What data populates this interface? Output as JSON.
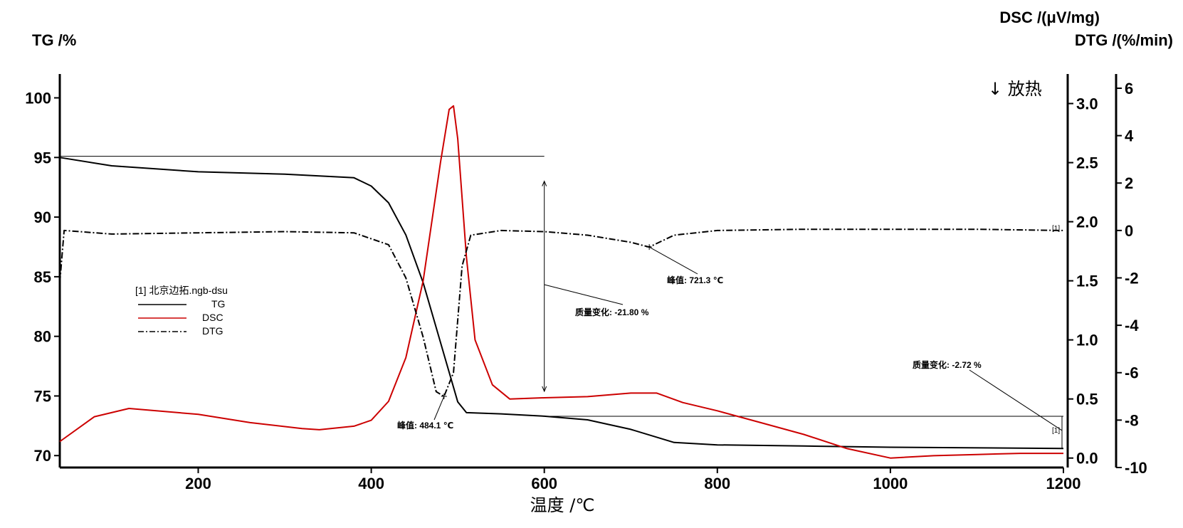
{
  "chart_data": {
    "type": "line",
    "xlabel": "温度 /℃",
    "xlim": [
      40,
      1200
    ],
    "xticks": [
      200,
      400,
      600,
      800,
      1000,
      1200
    ],
    "exo_label": "↓ 放热",
    "axes": {
      "tg": {
        "label": "TG /%",
        "lim": [
          69,
          102
        ],
        "ticks": [
          70,
          75,
          80,
          85,
          90,
          95,
          100
        ]
      },
      "dsc": {
        "label": "DSC /(μV/mg)",
        "lim": [
          -0.08,
          3.25
        ],
        "ticks": [
          0.0,
          0.5,
          1.0,
          1.5,
          2.0,
          2.5,
          3.0
        ],
        "tick_labels": [
          "0.0",
          "0.5",
          "1.0",
          "1.5",
          "2.0",
          "2.5",
          "3.0"
        ]
      },
      "dtg": {
        "label": "DTG /(%/min)",
        "lim": [
          -10,
          6.6
        ],
        "ticks": [
          -10,
          -8,
          -6,
          -4,
          -2,
          0,
          2,
          4,
          6
        ]
      }
    },
    "legend": {
      "title": "[1] 北京边拓.ngb-dsu",
      "entries": [
        "TG",
        "DSC",
        "DTG"
      ]
    },
    "series": [
      {
        "name": "TG",
        "axis": "tg",
        "color": "#000000",
        "dash": "solid",
        "points": [
          [
            40,
            95.0
          ],
          [
            100,
            94.3
          ],
          [
            200,
            93.8
          ],
          [
            300,
            93.6
          ],
          [
            380,
            93.3
          ],
          [
            400,
            92.6
          ],
          [
            420,
            91.2
          ],
          [
            440,
            88.5
          ],
          [
            460,
            84.5
          ],
          [
            480,
            79.5
          ],
          [
            500,
            74.5
          ],
          [
            510,
            73.6
          ],
          [
            550,
            73.5
          ],
          [
            600,
            73.3
          ],
          [
            650,
            73.0
          ],
          [
            700,
            72.2
          ],
          [
            750,
            71.1
          ],
          [
            800,
            70.9
          ],
          [
            900,
            70.8
          ],
          [
            1000,
            70.7
          ],
          [
            1200,
            70.6
          ]
        ]
      },
      {
        "name": "DSC",
        "axis": "dsc",
        "color": "#cc0000",
        "dash": "solid",
        "points": [
          [
            40,
            0.14
          ],
          [
            80,
            0.35
          ],
          [
            120,
            0.42
          ],
          [
            200,
            0.37
          ],
          [
            260,
            0.3
          ],
          [
            320,
            0.25
          ],
          [
            340,
            0.24
          ],
          [
            380,
            0.27
          ],
          [
            400,
            0.32
          ],
          [
            420,
            0.48
          ],
          [
            440,
            0.85
          ],
          [
            460,
            1.5
          ],
          [
            480,
            2.5
          ],
          [
            490,
            2.95
          ],
          [
            495,
            2.98
          ],
          [
            500,
            2.7
          ],
          [
            510,
            1.7
          ],
          [
            520,
            1.0
          ],
          [
            540,
            0.62
          ],
          [
            560,
            0.5
          ],
          [
            600,
            0.51
          ],
          [
            650,
            0.52
          ],
          [
            700,
            0.55
          ],
          [
            730,
            0.55
          ],
          [
            760,
            0.47
          ],
          [
            800,
            0.4
          ],
          [
            850,
            0.3
          ],
          [
            900,
            0.2
          ],
          [
            950,
            0.08
          ],
          [
            1000,
            0.0
          ],
          [
            1050,
            0.02
          ],
          [
            1100,
            0.03
          ],
          [
            1150,
            0.04
          ],
          [
            1200,
            0.04
          ]
        ]
      },
      {
        "name": "DTG",
        "axis": "dtg",
        "color": "#000000",
        "dash": "dashdot",
        "points": [
          [
            40,
            -2.2
          ],
          [
            45,
            0.0
          ],
          [
            100,
            -0.15
          ],
          [
            200,
            -0.1
          ],
          [
            300,
            -0.05
          ],
          [
            380,
            -0.1
          ],
          [
            420,
            -0.6
          ],
          [
            440,
            -2.0
          ],
          [
            460,
            -4.5
          ],
          [
            475,
            -6.8
          ],
          [
            484.1,
            -7.0
          ],
          [
            495,
            -6.0
          ],
          [
            505,
            -1.5
          ],
          [
            515,
            -0.2
          ],
          [
            550,
            0.0
          ],
          [
            600,
            -0.05
          ],
          [
            650,
            -0.2
          ],
          [
            700,
            -0.5
          ],
          [
            721.3,
            -0.7
          ],
          [
            750,
            -0.2
          ],
          [
            800,
            0.0
          ],
          [
            900,
            0.05
          ],
          [
            1000,
            0.05
          ],
          [
            1100,
            0.05
          ],
          [
            1200,
            0.0
          ]
        ]
      }
    ],
    "annotations": [
      {
        "text": "峰值: 484.1 ℃",
        "x": 484.1,
        "axis": "dtg",
        "y": -7.0
      },
      {
        "text": "峰值: 721.3 ℃",
        "x": 721.3,
        "axis": "dtg",
        "y": -0.7
      },
      {
        "text": "质量变化: -21.80 %",
        "axis": "tg",
        "from": 95.1,
        "to": 73.3,
        "x": 600
      },
      {
        "text": "质量变化: -2.72 %",
        "axis": "tg",
        "from": 73.3,
        "to": 70.6,
        "x": 1200
      }
    ],
    "segment_tag": "[1]"
  }
}
